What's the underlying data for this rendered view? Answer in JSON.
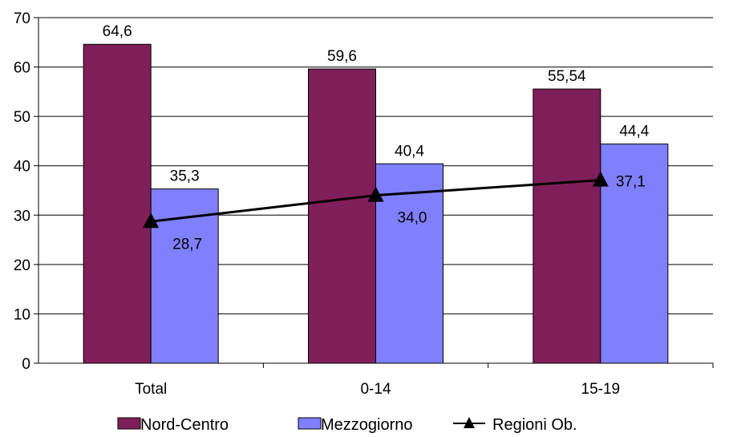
{
  "chart_data": {
    "type": "bar",
    "categories": [
      "Total",
      "0-14",
      "15-19"
    ],
    "series": [
      {
        "name": "Nord-Centro",
        "kind": "bar",
        "color": "#7f1f5a",
        "values": [
          64.6,
          59.6,
          55.54
        ],
        "labels": [
          "64,6",
          "59,6",
          "55,54"
        ]
      },
      {
        "name": "Mezzogiorno",
        "kind": "bar",
        "color": "#8080ff",
        "values": [
          35.3,
          40.4,
          44.4
        ],
        "labels": [
          "35,3",
          "40,4",
          "44,4"
        ]
      },
      {
        "name": "Regioni Ob.",
        "kind": "line",
        "color": "#000000",
        "marker": "triangle",
        "values": [
          28.7,
          34.0,
          37.1
        ],
        "labels": [
          "28,7",
          "34,0",
          "37,1"
        ]
      }
    ],
    "ylim": [
      0,
      70
    ],
    "yticks": [
      0,
      10,
      20,
      30,
      40,
      50,
      60,
      70
    ],
    "grid": true,
    "legend": "bottom",
    "xlabel": "",
    "ylabel": "",
    "title": ""
  }
}
